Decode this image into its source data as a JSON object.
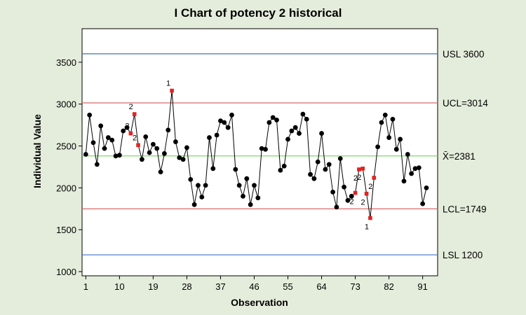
{
  "chart_data": {
    "type": "line",
    "title": "I Chart of potency 2 historical",
    "xlabel": "Observation",
    "ylabel": "Individual Value",
    "xlim": [
      0,
      95
    ],
    "ylim": [
      950,
      3900
    ],
    "x_ticks": [
      1,
      10,
      19,
      28,
      37,
      46,
      55,
      64,
      73,
      82,
      91
    ],
    "y_ticks": [
      1000,
      1500,
      2000,
      2500,
      3000,
      3500
    ],
    "grid": false,
    "series": [
      {
        "values": [
          2400,
          2870,
          2540,
          2280,
          2740,
          2470,
          2600,
          2570,
          2380,
          2390,
          2680,
          2720,
          2650,
          2880,
          2510,
          2340,
          2610,
          2420,
          2520,
          2470,
          2190,
          2410,
          2690,
          3160,
          2550,
          2360,
          2340,
          2480,
          2100,
          1800,
          2030,
          1890,
          2030,
          2600,
          2230,
          2630,
          2800,
          2780,
          2720,
          2870,
          2220,
          2030,
          1900,
          2110,
          1800,
          2030,
          1880,
          2470,
          2460,
          2780,
          2840,
          2810,
          2210,
          2260,
          2580,
          2680,
          2720,
          2650,
          2880,
          2820,
          2160,
          2110,
          2310,
          2650,
          2220,
          2280,
          1950,
          1770,
          2350,
          2010,
          1850,
          1900,
          1940,
          2220,
          2230,
          1930,
          1640,
          2120,
          2490,
          2780,
          2870,
          2600,
          2820,
          2460,
          2580,
          2080,
          2400,
          2170,
          2230,
          2240,
          1810,
          2000
        ]
      }
    ],
    "flagged_points": [
      {
        "x": 13,
        "label": "2"
      },
      {
        "x": 14,
        "label": "2"
      },
      {
        "x": 15,
        "label": "2"
      },
      {
        "x": 24,
        "label": "1"
      },
      {
        "x": 73,
        "label": "2"
      },
      {
        "x": 74,
        "label": "2"
      },
      {
        "x": 75,
        "label": "2"
      },
      {
        "x": 76,
        "label": "2"
      },
      {
        "x": 77,
        "label": "1"
      },
      {
        "x": 78,
        "label": "2"
      }
    ],
    "reference_lines": [
      {
        "value": 3600,
        "label": "USL 3600",
        "color": "#3f6fc8"
      },
      {
        "value": 3014,
        "label": "UCL=3014",
        "color": "#d86a6a"
      },
      {
        "value": 2381,
        "label": "X̄=2381",
        "color": "#7fd96a"
      },
      {
        "value": 1749,
        "label": "LCL=1749",
        "color": "#d86a6a"
      },
      {
        "value": 1200,
        "label": "LSL 1200",
        "color": "#3f6fc8"
      }
    ],
    "colors": {
      "line": "#000000",
      "point": "#000000",
      "flagged_point": "#e32222",
      "background": "#e4eddb",
      "plot_background": "#ffffff"
    }
  }
}
